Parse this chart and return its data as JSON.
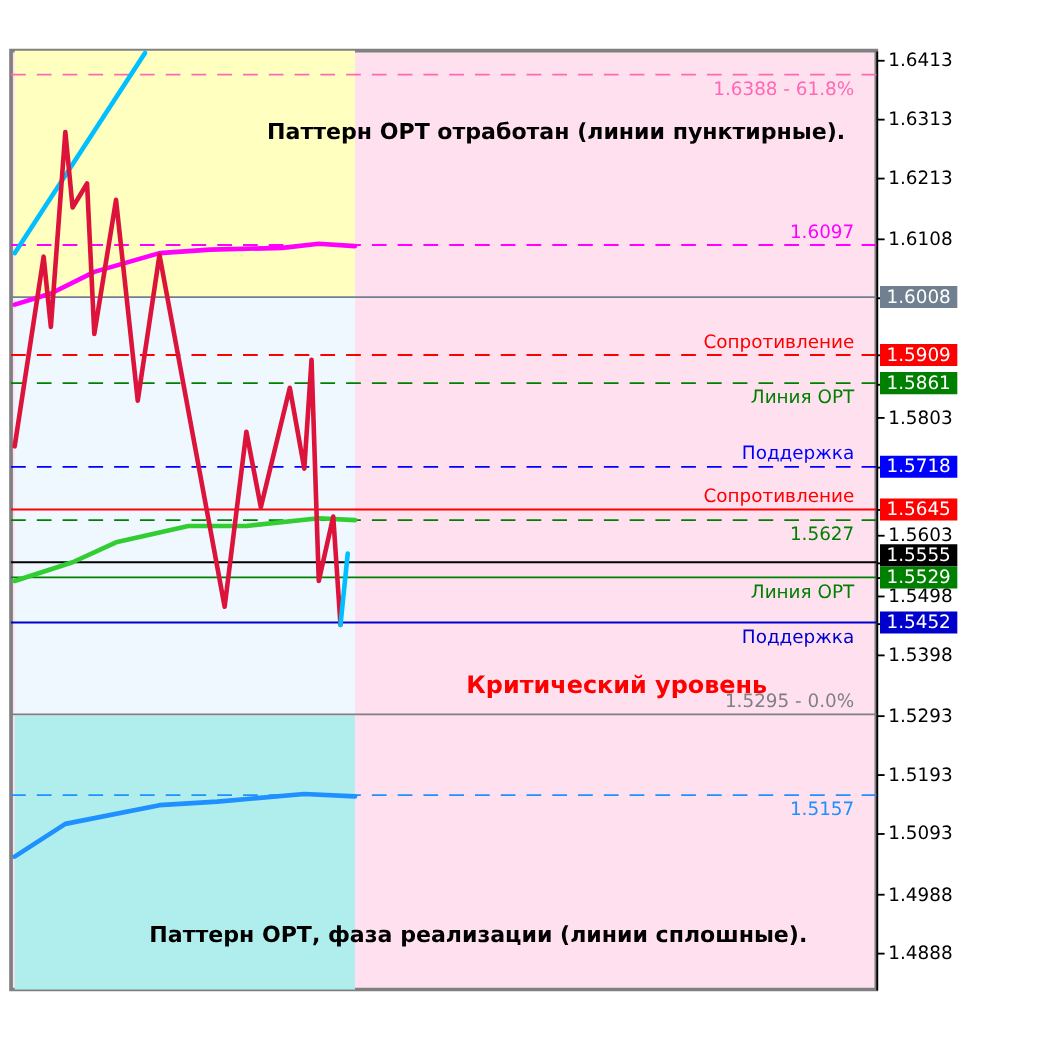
{
  "chart_data": {
    "type": "line",
    "categories": [
      null,
      null,
      null,
      null,
      null,
      null,
      null,
      null,
      null,
      null,
      null,
      null,
      null,
      null,
      null,
      null,
      null,
      null,
      null,
      null,
      null,
      null,
      null,
      null,
      null,
      null,
      null,
      null,
      null,
      null,
      null,
      null,
      null,
      null,
      null,
      null,
      null,
      null,
      null,
      null,
      null,
      null,
      null,
      null,
      null,
      null,
      null,
      null,
      null,
      null,
      null,
      null,
      null,
      null,
      null,
      null,
      null,
      null,
      null,
      null,
      null,
      null,
      null,
      null,
      null,
      null,
      null,
      null,
      null,
      null,
      null,
      null,
      null,
      null,
      null,
      null,
      null,
      null,
      null,
      null,
      null,
      null,
      null,
      null,
      null,
      null,
      null,
      null,
      null,
      null,
      null,
      null,
      null,
      null,
      null,
      null,
      null,
      null,
      null,
      null,
      null,
      null,
      null,
      null,
      null,
      null,
      null,
      null,
      null,
      null,
      null,
      null,
      null,
      null,
      null,
      null,
      null,
      null,
      null,
      null
    ],
    "series": [
      {
        "color": "#1e90ff",
        "values": [
          1.5052,
          null,
          null,
          null,
          null,
          null,
          null,
          1.5108,
          null,
          null,
          null,
          null,
          null,
          null,
          null,
          null,
          null,
          null,
          null,
          null,
          1.514,
          null,
          null,
          null,
          null,
          null,
          null,
          null,
          1.5146,
          null,
          null,
          null,
          null,
          null,
          null,
          null,
          null,
          null,
          null,
          null,
          1.5159,
          null,
          null,
          null,
          null,
          null,
          null,
          1.5155,
          null,
          null,
          null,
          null,
          null,
          null,
          null,
          null,
          null,
          null,
          null,
          null,
          null,
          null,
          null,
          null,
          null,
          null,
          null,
          null,
          null,
          null,
          null,
          null,
          null,
          null,
          null,
          null,
          null,
          null,
          null,
          null,
          null,
          null,
          null,
          null,
          null,
          null,
          null,
          null,
          null,
          null,
          null,
          null,
          null,
          null,
          null,
          null,
          null,
          null,
          null,
          null,
          null,
          null,
          null,
          null,
          null,
          null,
          null,
          null,
          null,
          null,
          null,
          null,
          null,
          null,
          null,
          null,
          null,
          null,
          null,
          null
        ]
      },
      {
        "color": "#ff00ff",
        "values": [
          1.5995,
          null,
          null,
          null,
          null,
          1.6014,
          null,
          null,
          null,
          null,
          null,
          1.6051,
          null,
          null,
          null,
          null,
          null,
          null,
          null,
          null,
          1.6083,
          null,
          null,
          null,
          null,
          null,
          null,
          1.6089,
          null,
          null,
          null,
          null,
          null,
          null,
          null,
          null,
          null,
          1.6092,
          null,
          null,
          null,
          null,
          1.6099,
          null,
          null,
          null,
          null,
          1.6095,
          null,
          null,
          null,
          null,
          null,
          null,
          null,
          null,
          null,
          null,
          null,
          null,
          null,
          null,
          null,
          null,
          null,
          null,
          null,
          null,
          null,
          null,
          null,
          null,
          null,
          null,
          null,
          null,
          null,
          null,
          null,
          null,
          null,
          null,
          null,
          null,
          null,
          null,
          null,
          null,
          null,
          null,
          null,
          null,
          null,
          null,
          null,
          null,
          null,
          null,
          null,
          null,
          null,
          null,
          null,
          null,
          null,
          null,
          null,
          null,
          null,
          null,
          null,
          null,
          null,
          null,
          null,
          null,
          null,
          null,
          null,
          null
        ]
      },
      {
        "color": "#32cd32",
        "values": [
          1.5523,
          null,
          null,
          null,
          null,
          null,
          null,
          null,
          1.5555,
          null,
          null,
          null,
          null,
          null,
          1.5589,
          null,
          null,
          null,
          null,
          null,
          null,
          null,
          null,
          null,
          1.5617,
          null,
          null,
          null,
          null,
          null,
          null,
          null,
          1.5617,
          null,
          null,
          null,
          null,
          null,
          null,
          null,
          null,
          null,
          1.563,
          null,
          null,
          null,
          null,
          1.5627,
          null,
          null,
          null,
          null,
          null,
          null,
          null,
          null,
          null,
          null,
          null,
          null,
          null,
          null,
          null,
          null,
          null,
          null,
          null,
          null,
          null,
          null,
          null,
          null,
          null,
          null,
          null,
          null,
          null,
          null,
          null,
          null,
          null,
          null,
          null,
          null,
          null,
          null,
          null,
          null,
          null,
          null,
          null,
          null,
          null,
          null,
          null,
          null,
          null,
          null,
          null,
          null,
          null,
          null,
          null,
          null,
          null,
          null,
          null,
          null,
          null,
          null,
          null,
          null,
          null,
          null,
          null,
          null,
          null,
          null,
          null,
          null
        ]
      },
      {
        "color": "#00bfff",
        "values": [
          1.6083,
          null,
          null,
          null,
          null,
          null,
          null,
          null,
          null,
          null,
          null,
          null,
          null,
          null,
          null,
          null,
          null,
          null,
          1.6425,
          null,
          null,
          null,
          null,
          null,
          null,
          null,
          null,
          null,
          null,
          null,
          null,
          null,
          null,
          null,
          null,
          null,
          null,
          null,
          null,
          null,
          null,
          null,
          null,
          null,
          null,
          null,
          null,
          null,
          null,
          null,
          null,
          null,
          null,
          null,
          null,
          null,
          null,
          null,
          null,
          null,
          null,
          null,
          null,
          null,
          null,
          null,
          null,
          null,
          null,
          null,
          null,
          null,
          null,
          null,
          null,
          null,
          null,
          null,
          null,
          null,
          null,
          null,
          null,
          null,
          null,
          null,
          null,
          null,
          null,
          null,
          null,
          null,
          null,
          null,
          null,
          null,
          null,
          null,
          null,
          null,
          null,
          null,
          null,
          null,
          null,
          null,
          null,
          null,
          null,
          null,
          null,
          null,
          null,
          null,
          null,
          null,
          null,
          null,
          null,
          null
        ]
      },
      {
        "color": "#dc143c",
        "values": [
          1.5753,
          null,
          null,
          null,
          1.6077,
          1.5957,
          null,
          1.629,
          1.6161,
          null,
          1.6202,
          1.5945,
          null,
          null,
          1.6174,
          null,
          null,
          1.5831,
          null,
          null,
          1.608,
          null,
          null,
          null,
          null,
          null,
          null,
          null,
          null,
          1.5479,
          null,
          null,
          1.5778,
          null,
          1.5649,
          null,
          null,
          null,
          1.5853,
          null,
          1.5715,
          1.5901,
          1.5523,
          null,
          1.5633,
          1.5448,
          null,
          null,
          null,
          null,
          null,
          null,
          null,
          null,
          null,
          null,
          null,
          null,
          null,
          null,
          null,
          null,
          null,
          null,
          null,
          null,
          null,
          null,
          null,
          null,
          null,
          null,
          null,
          null,
          null,
          null,
          null,
          null,
          null,
          null,
          null,
          null,
          null,
          null,
          null,
          null,
          null,
          null,
          null,
          null,
          null,
          null,
          null,
          null,
          null,
          null,
          null,
          null,
          null,
          null,
          null,
          null,
          null,
          null,
          null,
          null,
          null,
          null,
          null,
          null,
          null,
          null,
          null,
          null,
          null,
          null,
          null,
          null,
          null,
          null
        ]
      },
      {
        "color": "#00bfff",
        "values": [
          null,
          null,
          null,
          null,
          null,
          null,
          null,
          null,
          null,
          null,
          null,
          null,
          null,
          null,
          null,
          null,
          null,
          null,
          null,
          null,
          null,
          null,
          null,
          null,
          null,
          null,
          null,
          null,
          null,
          null,
          null,
          null,
          null,
          null,
          null,
          null,
          null,
          null,
          null,
          null,
          null,
          null,
          null,
          null,
          null,
          1.5448,
          1.557,
          null,
          null,
          null,
          null,
          null,
          null,
          null,
          null,
          null,
          null,
          null,
          null,
          null,
          null,
          null,
          null,
          null,
          null,
          null,
          null,
          null,
          null,
          null,
          null,
          null,
          null,
          null,
          null,
          null,
          null,
          null,
          null,
          null,
          null,
          null,
          null,
          null,
          null,
          null,
          null,
          null,
          null,
          null,
          null,
          null,
          null,
          null,
          null,
          null,
          null,
          null,
          null,
          null,
          null,
          null,
          null,
          null,
          null,
          null,
          null,
          null,
          null,
          null,
          null,
          null,
          null,
          null,
          null,
          null,
          null,
          null,
          null,
          null
        ]
      }
    ],
    "ylim": [
      1.4825,
      1.6429
    ],
    "yticks": [
      1.6413,
      1.6313,
      1.6213,
      1.6108,
      1.6008,
      1.5909,
      1.5861,
      1.5803,
      1.5718,
      1.5645,
      1.5603,
      1.5555,
      1.5529,
      1.5498,
      1.5452,
      1.5398,
      1.5293,
      1.5193,
      1.5093,
      1.4988,
      1.4888
    ],
    "tick_labels": "y",
    "bands": [
      {
        "axis": "y",
        "from": 1.6008,
        "to": 1.6429,
        "color": "#ffffc0"
      },
      {
        "axis": "y",
        "from": 1.5293,
        "to": 1.6008,
        "color": "#f0f8ff"
      },
      {
        "axis": "y",
        "from": 1.4825,
        "to": 1.5293,
        "color": "#b0eeee"
      }
    ],
    "ref_lines": [
      {
        "axis": "y",
        "value": 1.6388,
        "label": "1.6388 - 61.8%",
        "color": "#ff69b4",
        "line_style": "dashed"
      },
      {
        "axis": "y",
        "value": 1.6097,
        "label": "1.6097",
        "color": "#ff00ff",
        "line_style": "dashed"
      },
      {
        "axis": "y",
        "value": 1.6008,
        "label": null,
        "color": "#708090",
        "line_style": "solid"
      },
      {
        "axis": "y",
        "value": 1.5909,
        "label": "Сопротивление",
        "color": "#ff0000",
        "line_style": "dashed"
      },
      {
        "axis": "y",
        "value": 1.5861,
        "label": "Линия ОРТ",
        "color": "#008000",
        "line_style": "dashed"
      },
      {
        "axis": "y",
        "value": 1.5718,
        "label": "Поддержка",
        "color": "#0000ff",
        "line_style": "dashed"
      },
      {
        "axis": "y",
        "value": 1.5645,
        "label": "Сопротивление",
        "color": "#ff0000",
        "line_style": "solid"
      },
      {
        "axis": "y",
        "value": 1.5627,
        "label": "1.5627",
        "color": "#008000",
        "line_style": "dashed"
      },
      {
        "axis": "y",
        "value": 1.5555,
        "label": null,
        "color": "#000000",
        "line_style": "solid"
      },
      {
        "axis": "y",
        "value": 1.5529,
        "label": "Линия ОРТ",
        "color": "#008000",
        "line_style": "solid"
      },
      {
        "axis": "y",
        "value": 1.5452,
        "label": "Поддержка",
        "color": "#0000cc",
        "line_style": "solid"
      },
      {
        "axis": "y",
        "value": 1.5295,
        "label": "1.5295 - 0.0%",
        "color": "#808080",
        "line_style": "solid"
      },
      {
        "axis": "y",
        "value": 1.5157,
        "label": "1.5157",
        "color": "#1e90ff",
        "line_style": "dashed"
      }
    ],
    "annotations": [
      "Паттерн ОРТ отработан (линии пунктирные).",
      "Паттерн ОРТ, фаза реализации (линии сплошные).",
      "Критический уровень"
    ]
  }
}
